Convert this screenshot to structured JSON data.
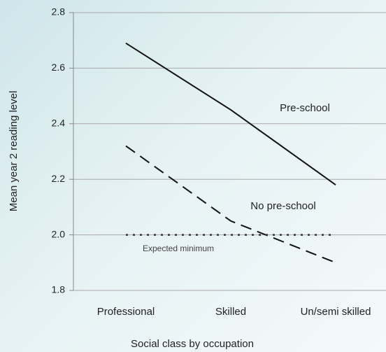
{
  "chart_data": {
    "type": "line",
    "xlabel": "Social class by occupation",
    "ylabel": "Mean year 2 reading level",
    "categories": [
      "Professional",
      "Skilled",
      "Un/semi skilled"
    ],
    "series": [
      {
        "name": "Pre-school",
        "color": "#111111",
        "style": "solid",
        "values": [
          2.69,
          2.45,
          2.18
        ]
      },
      {
        "name": "No pre-school",
        "color": "#111111",
        "style": "dashed",
        "values": [
          2.32,
          2.05,
          1.9
        ]
      },
      {
        "name": "Expected minimum",
        "color": "#333333",
        "style": "dotted",
        "values": [
          2,
          2,
          2
        ]
      }
    ],
    "ylim": [
      1.8,
      2.8
    ],
    "yticks": [
      {
        "value": 1.8,
        "label": "1.8"
      },
      {
        "value": 2,
        "label": "2.0"
      },
      2.2,
      2.4,
      2.6,
      2.8
    ],
    "grid": true
  }
}
